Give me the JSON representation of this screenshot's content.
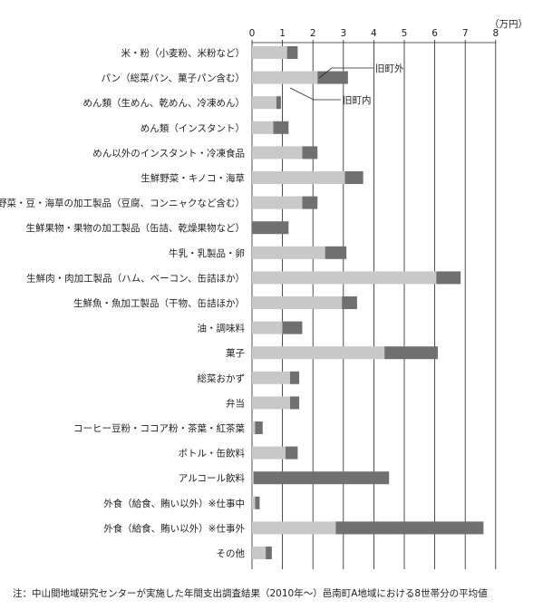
{
  "chart_data": {
    "type": "bar",
    "stacked": true,
    "orientation": "horizontal",
    "unit_label": "（万円）",
    "xlim": [
      0,
      8
    ],
    "x_ticks": [
      "0",
      "1",
      "2",
      "3",
      "4",
      "5",
      "6",
      "7",
      "8"
    ],
    "grid": "vertical",
    "categories": [
      "米・粉（小麦粉、米粉など）",
      "パン（総菜パン、菓子パン含む）",
      "めん類（生めん、乾めん、冷凍めん）",
      "めん類（インスタント）",
      "めん以外のインスタント・冷凍食品",
      "生鮮野菜・キノコ・海草",
      "野菜・豆・海草の加工製品（豆腐、コンニャクなど含む）",
      "生鮮果物・果物の加工製品（缶詰、乾燥果物など）",
      "牛乳・乳製品・卵",
      "生鮮肉・肉加工製品（ハム、ベーコン、缶詰ほか）",
      "生鮮魚・魚加工製品（干物、缶詰ほか）",
      "油・調味料",
      "菓子",
      "総菜おかず",
      "弁当",
      "コーヒー豆粉・ココア粉・茶葉・紅茶葉",
      "ボトル・缶飲料",
      "アルコール飲料",
      "外食（給食、賄い以外）※仕事中",
      "外食（給食、賄い以外）※仕事外",
      "その他"
    ],
    "series": [
      {
        "name": "旧町内",
        "color": "#c8c8c8",
        "values": [
          1.15,
          2.15,
          0.8,
          0.7,
          1.65,
          3.05,
          1.65,
          0.0,
          2.4,
          6.05,
          2.95,
          1.0,
          4.35,
          1.25,
          1.25,
          0.1,
          1.1,
          0.05,
          0.1,
          2.75,
          0.45
        ]
      },
      {
        "name": "旧町外",
        "color": "#707070",
        "values": [
          0.35,
          1.0,
          0.15,
          0.5,
          0.5,
          0.6,
          0.5,
          1.2,
          0.7,
          0.8,
          0.5,
          0.65,
          1.75,
          0.3,
          0.3,
          0.25,
          0.4,
          4.45,
          0.15,
          4.85,
          0.2
        ]
      }
    ],
    "annotations": [
      "旧町外",
      "旧町内"
    ],
    "note": "注：中山間地域研究センターが実施した年間支出調査結果（2010年～）邑南町A地域における8世帯分の平均値"
  }
}
